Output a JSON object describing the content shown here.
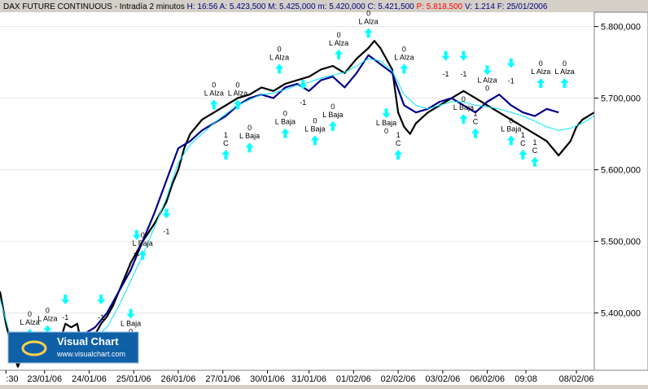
{
  "header": {
    "name": "DAX FUTURE CONTINUOUS",
    "sep": " - ",
    "interval": "Intradía 2 minutos",
    "fields": [
      {
        "label": "H:",
        "value": "16:56",
        "color": "#000080"
      },
      {
        "label": "A:",
        "value": "5.423,500",
        "color": "#000080"
      },
      {
        "label": "M:",
        "value": "5.425,000",
        "color": "#000080"
      },
      {
        "label": "m:",
        "value": "5.420,000",
        "color": "#000080"
      },
      {
        "label": "C:",
        "value": "5.421,500",
        "color": "#000080"
      },
      {
        "label": "P:",
        "value": "5.818,500",
        "color": "#ff0000"
      },
      {
        "label": "V:",
        "value": "1.214",
        "color": "#000080"
      },
      {
        "label": "F:",
        "value": "25/01/2006",
        "color": "#000080"
      }
    ]
  },
  "logo": {
    "title": "Visual Chart",
    "url": "www.visualchart.com"
  },
  "colors": {
    "background": "#ffffff",
    "frame": "#d4d0c8",
    "price_black": "#000000",
    "price_blue": "#00008b",
    "average": "#00e5ff",
    "arrows": "#00ffff"
  },
  "chart_data": {
    "type": "line",
    "title": "DAX FUTURE CONTINUOUS - Intradía 2 minutos",
    "xlabel": "",
    "ylabel": "",
    "ylim": [
      5320,
      5820
    ],
    "y_ticks": [
      {
        "value": 5400,
        "label": "5.400,000"
      },
      {
        "value": 5500,
        "label": "5.500,000"
      },
      {
        "value": 5600,
        "label": "5.600,000"
      },
      {
        "value": 5700,
        "label": "5.700,000"
      },
      {
        "value": 5800,
        "label": "5.800,000"
      }
    ],
    "x_ticks": [
      ":30",
      "23/01/06",
      "24/01/06",
      "25/01/06",
      "26/01/06",
      "27/01/06",
      "30/01/06",
      "31/01/06",
      "01/02/06",
      "02/02/06",
      "03/02/06",
      "06/02/06",
      "09:08",
      "08/02/06"
    ],
    "xlim": [
      0,
      100
    ],
    "x_tick_positions": [
      1,
      7.5,
      15,
      22.5,
      30,
      37.5,
      45,
      52,
      59.5,
      67,
      74.5,
      82,
      88.5,
      97
    ],
    "series": [
      {
        "color": "#000000",
        "x": [
          0,
          1,
          2,
          3,
          4,
          6,
          8,
          10,
          11,
          12,
          13,
          14,
          15,
          16,
          17,
          18,
          19,
          20,
          21,
          22,
          24,
          26,
          28,
          29,
          30,
          31,
          32,
          33,
          34,
          36,
          38,
          40,
          42,
          44,
          46,
          48,
          50,
          52,
          54,
          56,
          58,
          60,
          62,
          63,
          64,
          65,
          66,
          67,
          68,
          69,
          70,
          72,
          74,
          76,
          78,
          80,
          82,
          84,
          86,
          88,
          90,
          92,
          94,
          96,
          97,
          98,
          99,
          100
        ],
        "y": [
          5430,
          5385,
          5350,
          5325,
          5345,
          5350,
          5355,
          5358,
          5385,
          5380,
          5385,
          5345,
          5355,
          5370,
          5385,
          5395,
          5410,
          5430,
          5450,
          5470,
          5500,
          5525,
          5555,
          5580,
          5600,
          5630,
          5650,
          5660,
          5670,
          5680,
          5690,
          5700,
          5705,
          5715,
          5710,
          5720,
          5725,
          5730,
          5740,
          5745,
          5735,
          5755,
          5770,
          5780,
          5770,
          5755,
          5740,
          5680,
          5660,
          5650,
          5665,
          5680,
          5690,
          5700,
          5710,
          5700,
          5690,
          5680,
          5670,
          5660,
          5650,
          5640,
          5620,
          5640,
          5660,
          5670,
          5675,
          5680
        ]
      },
      {
        "color": "#00008b",
        "x": [
          4,
          6,
          8,
          10,
          14,
          16,
          18,
          20,
          22,
          24,
          26,
          30,
          32,
          34,
          36,
          38,
          40,
          42,
          44,
          46,
          48,
          50,
          52,
          54,
          56,
          58,
          60,
          62,
          66,
          68,
          70,
          72,
          74,
          76,
          78,
          80,
          82,
          84,
          86,
          88,
          90,
          92,
          94
        ],
        "y": [
          5340,
          5345,
          5348,
          5350,
          5370,
          5380,
          5400,
          5430,
          5460,
          5500,
          5540,
          5630,
          5640,
          5655,
          5665,
          5675,
          5690,
          5700,
          5705,
          5700,
          5715,
          5720,
          5710,
          5725,
          5730,
          5715,
          5735,
          5760,
          5735,
          5690,
          5680,
          5685,
          5695,
          5700,
          5690,
          5680,
          5695,
          5705,
          5690,
          5680,
          5675,
          5685,
          5680
        ]
      },
      {
        "color": "#00e5ff",
        "x": [
          0,
          2,
          4,
          6,
          8,
          10,
          12,
          14,
          16,
          18,
          20,
          22,
          24,
          26,
          28,
          30,
          32,
          34,
          36,
          38,
          40,
          42,
          44,
          46,
          48,
          50,
          52,
          54,
          56,
          58,
          60,
          62,
          64,
          66,
          68,
          70,
          72,
          74,
          76,
          78,
          80,
          82,
          84,
          86,
          88,
          90,
          92,
          94,
          96,
          98,
          100
        ],
        "y": [
          5420,
          5360,
          5345,
          5348,
          5352,
          5355,
          5365,
          5360,
          5365,
          5380,
          5410,
          5445,
          5480,
          5520,
          5560,
          5610,
          5635,
          5650,
          5665,
          5678,
          5690,
          5698,
          5705,
          5707,
          5712,
          5718,
          5722,
          5728,
          5732,
          5736,
          5745,
          5755,
          5752,
          5738,
          5705,
          5690,
          5685,
          5690,
          5695,
          5695,
          5690,
          5688,
          5685,
          5680,
          5675,
          5668,
          5660,
          5655,
          5658,
          5665,
          5675
        ]
      }
    ],
    "signals": [
      {
        "x": 5,
        "y": 5370,
        "dir": "up",
        "label": "L Alza",
        "extra": "0"
      },
      {
        "x": 8,
        "y": 5375,
        "dir": "up",
        "label": "L Alza",
        "extra": "0"
      },
      {
        "x": 11,
        "y": 5420,
        "dir": "down",
        "label": "",
        "extra": "-1"
      },
      {
        "x": 17,
        "y": 5420,
        "dir": "down",
        "label": "",
        "extra": "-1"
      },
      {
        "x": 22,
        "y": 5400,
        "dir": "down",
        "label": "L Baja",
        "extra": "0"
      },
      {
        "x": 24,
        "y": 5480,
        "dir": "up",
        "label": "L Baja",
        "extra": "0"
      },
      {
        "x": 23,
        "y": 5510,
        "dir": "down",
        "label": "",
        "extra": "-1"
      },
      {
        "x": 28,
        "y": 5540,
        "dir": "down",
        "label": "",
        "extra": "-1"
      },
      {
        "x": 36,
        "y": 5690,
        "dir": "up",
        "label": "L Alza",
        "extra": "0"
      },
      {
        "x": 40,
        "y": 5690,
        "dir": "up",
        "label": "L Alza",
        "extra": "0"
      },
      {
        "x": 38,
        "y": 5620,
        "dir": "up",
        "label": "C",
        "extra": "1"
      },
      {
        "x": 42,
        "y": 5630,
        "dir": "up",
        "label": "L Baja",
        "extra": "0"
      },
      {
        "x": 47,
        "y": 5740,
        "dir": "up",
        "label": "L Alza",
        "extra": "0"
      },
      {
        "x": 51,
        "y": 5720,
        "dir": "down",
        "label": "",
        "extra": "-1"
      },
      {
        "x": 48,
        "y": 5650,
        "dir": "up",
        "label": "L Baja",
        "extra": "0"
      },
      {
        "x": 53,
        "y": 5640,
        "dir": "up",
        "label": "L Baja",
        "extra": "0"
      },
      {
        "x": 57,
        "y": 5760,
        "dir": "up",
        "label": "L Alza",
        "extra": "0"
      },
      {
        "x": 56,
        "y": 5660,
        "dir": "up",
        "label": "L Baja",
        "extra": "0"
      },
      {
        "x": 62,
        "y": 5790,
        "dir": "up",
        "label": "L Alza",
        "extra": "0"
      },
      {
        "x": 65,
        "y": 5680,
        "dir": "down",
        "label": "L Baja",
        "extra": "0"
      },
      {
        "x": 67,
        "y": 5620,
        "dir": "up",
        "label": "C",
        "extra": "1"
      },
      {
        "x": 68,
        "y": 5740,
        "dir": "up",
        "label": "L Alza",
        "extra": "0"
      },
      {
        "x": 75,
        "y": 5760,
        "dir": "down",
        "label": "",
        "extra": "-1"
      },
      {
        "x": 78,
        "y": 5760,
        "dir": "down",
        "label": "",
        "extra": "-1"
      },
      {
        "x": 78,
        "y": 5670,
        "dir": "up",
        "label": "L Baja",
        "extra": "0"
      },
      {
        "x": 80,
        "y": 5650,
        "dir": "up",
        "label": "C",
        "extra": "1"
      },
      {
        "x": 82,
        "y": 5740,
        "dir": "down",
        "label": "L Alza",
        "extra": "0"
      },
      {
        "x": 86,
        "y": 5750,
        "dir": "down",
        "label": "",
        "extra": "-1"
      },
      {
        "x": 86,
        "y": 5640,
        "dir": "up",
        "label": "L Baja",
        "extra": "0"
      },
      {
        "x": 88,
        "y": 5620,
        "dir": "up",
        "label": "C",
        "extra": "1"
      },
      {
        "x": 91,
        "y": 5720,
        "dir": "up",
        "label": "L Alza",
        "extra": "0"
      },
      {
        "x": 90,
        "y": 5610,
        "dir": "up",
        "label": "C",
        "extra": "1"
      },
      {
        "x": 95,
        "y": 5720,
        "dir": "up",
        "label": "L Alza",
        "extra": "0"
      }
    ]
  }
}
